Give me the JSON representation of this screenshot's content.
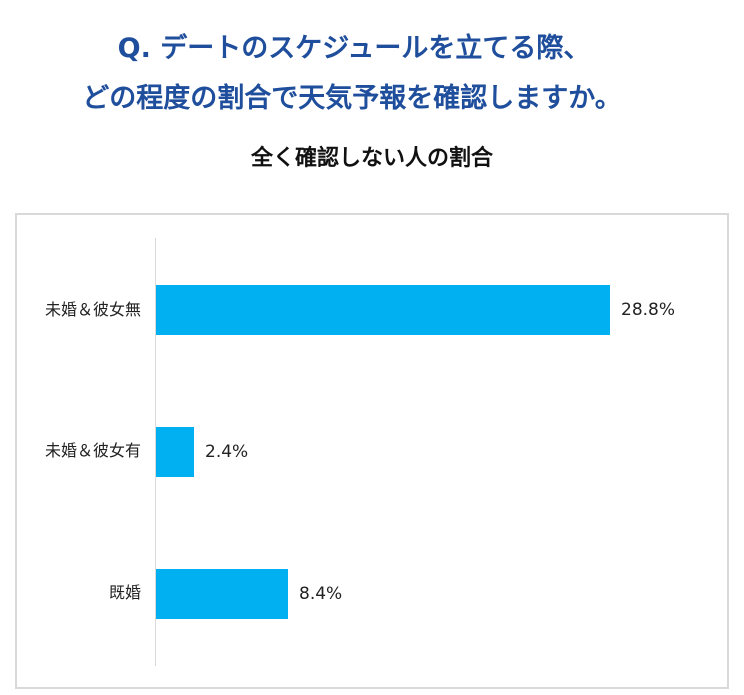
{
  "header": {
    "question_line1": "Q. デートのスケジュールを立てる際、",
    "question_line2": "どの程度の割合で天気予報を確認しますか。",
    "subtitle": "全く確認しない人の割合"
  },
  "colors": {
    "title": "#1f4e9c",
    "bar": "#00b0f0",
    "border": "#d9d9d9"
  },
  "chart_data": {
    "type": "bar",
    "orientation": "horizontal",
    "title": "全く確認しない人の割合",
    "categories": [
      "未婚＆彼女無",
      "未婚＆彼女有",
      "既婚"
    ],
    "values": [
      28.8,
      2.4,
      8.4
    ],
    "value_labels": [
      "28.8%",
      "2.4%",
      "8.4%"
    ],
    "xlabel": "",
    "ylabel": "",
    "xlim": [
      0,
      30
    ],
    "grid": false,
    "legend": null
  }
}
